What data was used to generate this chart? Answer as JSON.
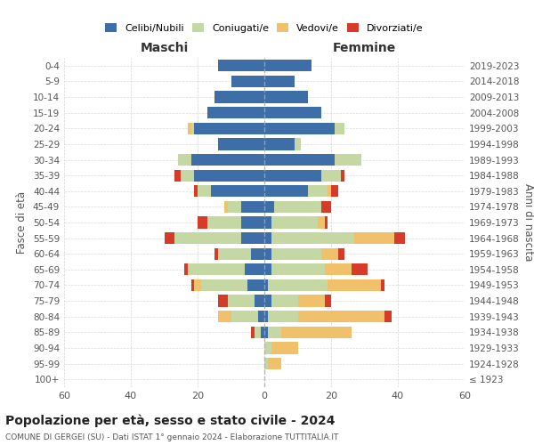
{
  "age_groups": [
    "100+",
    "95-99",
    "90-94",
    "85-89",
    "80-84",
    "75-79",
    "70-74",
    "65-69",
    "60-64",
    "55-59",
    "50-54",
    "45-49",
    "40-44",
    "35-39",
    "30-34",
    "25-29",
    "20-24",
    "15-19",
    "10-14",
    "5-9",
    "0-4"
  ],
  "birth_years": [
    "≤ 1923",
    "1924-1928",
    "1929-1933",
    "1934-1938",
    "1939-1943",
    "1944-1948",
    "1949-1953",
    "1954-1958",
    "1959-1963",
    "1964-1968",
    "1969-1973",
    "1974-1978",
    "1979-1983",
    "1984-1988",
    "1989-1993",
    "1994-1998",
    "1999-2003",
    "2004-2008",
    "2009-2013",
    "2014-2018",
    "2019-2023"
  ],
  "maschi": {
    "celibi": [
      0,
      0,
      0,
      1,
      2,
      3,
      5,
      6,
      4,
      7,
      7,
      7,
      16,
      21,
      22,
      14,
      21,
      17,
      15,
      10,
      14
    ],
    "coniugati": [
      0,
      0,
      0,
      2,
      8,
      8,
      14,
      17,
      10,
      20,
      10,
      4,
      4,
      4,
      4,
      0,
      1,
      0,
      0,
      0,
      0
    ],
    "vedove": [
      0,
      0,
      0,
      0,
      4,
      0,
      2,
      0,
      0,
      0,
      0,
      1,
      0,
      0,
      0,
      0,
      1,
      0,
      0,
      0,
      0
    ],
    "divorziate": [
      0,
      0,
      0,
      1,
      0,
      3,
      1,
      1,
      1,
      3,
      3,
      0,
      1,
      2,
      0,
      0,
      0,
      0,
      0,
      0,
      0
    ]
  },
  "femmine": {
    "nubili": [
      0,
      0,
      0,
      1,
      1,
      2,
      1,
      2,
      2,
      2,
      2,
      3,
      13,
      17,
      21,
      9,
      21,
      17,
      13,
      9,
      14
    ],
    "coniugate": [
      0,
      1,
      2,
      4,
      9,
      8,
      18,
      16,
      15,
      25,
      14,
      14,
      6,
      6,
      8,
      2,
      3,
      0,
      0,
      0,
      0
    ],
    "vedove": [
      0,
      4,
      8,
      21,
      26,
      8,
      16,
      8,
      5,
      12,
      2,
      0,
      1,
      0,
      0,
      0,
      0,
      0,
      0,
      0,
      0
    ],
    "divorziate": [
      0,
      0,
      0,
      0,
      2,
      2,
      1,
      5,
      2,
      3,
      1,
      3,
      2,
      1,
      0,
      0,
      0,
      0,
      0,
      0,
      0
    ]
  },
  "colors": {
    "celibi": "#3d6ea8",
    "coniugati": "#c5d8a4",
    "vedove": "#f0c06a",
    "divorziate": "#d63b2a"
  },
  "xlim": 60,
  "title": "Popolazione per età, sesso e stato civile - 2024",
  "subtitle": "COMUNE DI GERGEI (SU) - Dati ISTAT 1° gennaio 2024 - Elaborazione TUTTITALIA.IT",
  "ylabel_left": "Fasce di età",
  "ylabel_right": "Anni di nascita",
  "xlabel_maschi": "Maschi",
  "xlabel_femmine": "Femmine",
  "legend_labels": [
    "Celibi/Nubili",
    "Coniugati/e",
    "Vedovi/e",
    "Divorziati/e"
  ],
  "background_color": "#ffffff",
  "grid_color": "#cccccc"
}
